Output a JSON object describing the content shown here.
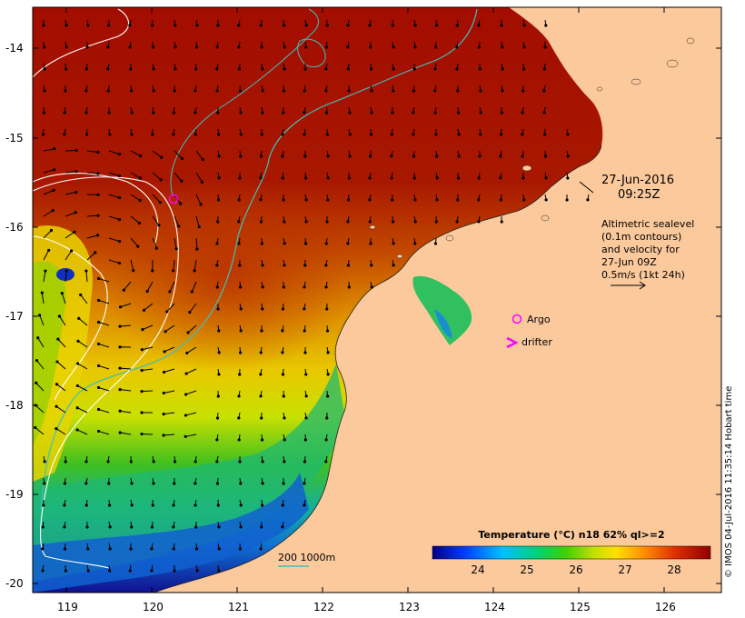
{
  "map": {
    "date_label": "27-Jun-2016",
    "time_label": "09:25Z",
    "altimetry_lines": [
      "Altimetric sealevel",
      "(0.1m contours)",
      "and velocity for",
      "27-Jun 09Z",
      "0.5m/s (1kt 24h)"
    ],
    "legend_argo": "Argo",
    "legend_drifter": "drifter",
    "depth_contour_label": "200  1000m",
    "lat_ticks": [
      "-14",
      "-15",
      "-16",
      "-17",
      "-18",
      "-19",
      "-20"
    ],
    "lon_ticks": [
      "119",
      "120",
      "121",
      "122",
      "123",
      "124",
      "125",
      "126"
    ],
    "colorbar_title": "Temperature (°C) n18 62% ql>=2",
    "colorbar_ticks": [
      "24",
      "25",
      "26",
      "27",
      "28"
    ],
    "credit": "© IMOS 04-Jul-2016 11:35:14 Hobart time",
    "colors": {
      "land": "#fcc99c",
      "sea_hot": "#a30d00",
      "argo": "#ff00ff",
      "bathymetry": "#3fbfbf",
      "sealevel_contour": "#ffffff"
    }
  }
}
